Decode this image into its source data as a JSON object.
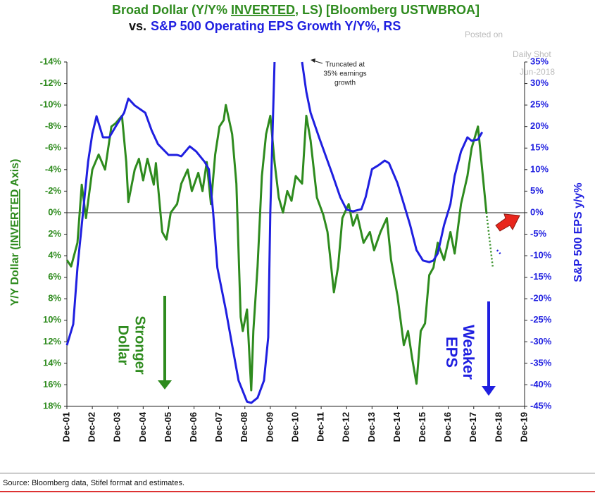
{
  "chart_data": {
    "type": "line",
    "title": {
      "line1": [
        "Broad Dollar (Y/Y% ",
        "INVERTED",
        ", LS) [Bloomberg USTWBROA]"
      ],
      "line2_prefix": "vs.",
      "line2": "S&P 500 Operating EPS  Growth Y/Y%, RS"
    },
    "watermark": [
      "Posted on",
      "Daily Shot",
      "Jun-2018"
    ],
    "ylabel": [
      "Y/Y Dollar (",
      "INVERTED",
      " Axis)"
    ],
    "y2label": "S&P 500 EPS y/y%",
    "annotations": {
      "truncated": [
        "Truncated at",
        "35% earnings",
        "growth"
      ],
      "stronger": [
        "Stronger",
        "Dollar"
      ],
      "weaker": [
        "Weaker",
        "EPS"
      ]
    },
    "source": "Source: Bloomberg data, Stifel format and estimates.",
    "xlim": [
      "2001-12",
      "2019-12"
    ],
    "xticks": [
      {
        "value": "2001-12",
        "label": "Dec-01"
      },
      {
        "value": "2002-12",
        "label": "Dec-02"
      },
      {
        "value": "2003-12",
        "label": "Dec-03"
      },
      {
        "value": "2004-12",
        "label": "Dec-04"
      },
      {
        "value": "2005-12",
        "label": "Dec-05"
      },
      {
        "value": "2006-12",
        "label": "Dec-06"
      },
      {
        "value": "2007-12",
        "label": "Dec-07"
      },
      {
        "value": "2008-12",
        "label": "Dec-08"
      },
      {
        "value": "2009-12",
        "label": "Dec-09"
      },
      {
        "value": "2010-12",
        "label": "Dec-10"
      },
      {
        "value": "2011-12",
        "label": "Dec-11"
      },
      {
        "value": "2012-12",
        "label": "Dec-12"
      },
      {
        "value": "2013-12",
        "label": "Dec-13"
      },
      {
        "value": "2014-12",
        "label": "Dec-14"
      },
      {
        "value": "2015-12",
        "label": "Dec-15"
      },
      {
        "value": "2016-12",
        "label": "Dec-16"
      },
      {
        "value": "2017-12",
        "label": "Dec-17"
      },
      {
        "value": "2018-12",
        "label": "Dec-18"
      },
      {
        "value": "2019-12",
        "label": "Dec-19"
      }
    ],
    "ylim": [
      -14,
      18
    ],
    "yinvert": true,
    "yticks": [
      {
        "value": -14,
        "label": "-14%"
      },
      {
        "value": -12,
        "label": "-12%"
      },
      {
        "value": -10,
        "label": "-10%"
      },
      {
        "value": -8,
        "label": "-8%"
      },
      {
        "value": -6,
        "label": "-6%"
      },
      {
        "value": -4,
        "label": "-4%"
      },
      {
        "value": -2,
        "label": "-2%"
      },
      {
        "value": 0,
        "label": "0%"
      },
      {
        "value": 2,
        "label": "2%"
      },
      {
        "value": 4,
        "label": "4%"
      },
      {
        "value": 6,
        "label": "6%"
      },
      {
        "value": 8,
        "label": "8%"
      },
      {
        "value": 10,
        "label": "10%"
      },
      {
        "value": 12,
        "label": "12%"
      },
      {
        "value": 14,
        "label": "14%"
      },
      {
        "value": 16,
        "label": "16%"
      },
      {
        "value": 18,
        "label": "18%"
      }
    ],
    "y2lim": [
      -45,
      35
    ],
    "y2ticks": [
      {
        "value": 35,
        "label": "35%"
      },
      {
        "value": 30,
        "label": "30%"
      },
      {
        "value": 25,
        "label": "25%"
      },
      {
        "value": 20,
        "label": "20%"
      },
      {
        "value": 15,
        "label": "15%"
      },
      {
        "value": 10,
        "label": "10%"
      },
      {
        "value": 5,
        "label": "5%"
      },
      {
        "value": 0,
        "label": "0%"
      },
      {
        "value": -5,
        "label": "-5%"
      },
      {
        "value": -10,
        "label": "-10%"
      },
      {
        "value": -15,
        "label": "-15%"
      },
      {
        "value": -20,
        "label": "-20%"
      },
      {
        "value": -25,
        "label": "-25%"
      },
      {
        "value": -30,
        "label": "-30%"
      },
      {
        "value": -35,
        "label": "-35%"
      },
      {
        "value": -40,
        "label": "-40%"
      },
      {
        "value": -45,
        "label": "-45%"
      }
    ],
    "series": [
      {
        "color": "#2e8b1e",
        "axis": "y",
        "dotted": false,
        "x": [
          "2001-12",
          "2002-02",
          "2002-05",
          "2002-07",
          "2002-09",
          "2002-12",
          "2003-03",
          "2003-06",
          "2003-09",
          "2003-11",
          "2004-02",
          "2004-04",
          "2004-05",
          "2004-08",
          "2004-10",
          "2004-12",
          "2005-02",
          "2005-05",
          "2005-06",
          "2005-09",
          "2005-11",
          "2006-01",
          "2006-04",
          "2006-06",
          "2006-09",
          "2006-11",
          "2007-02",
          "2007-04",
          "2007-06",
          "2007-08",
          "2007-10",
          "2007-12",
          "2008-02",
          "2008-03",
          "2008-06",
          "2008-08",
          "2008-10",
          "2008-11",
          "2009-01",
          "2009-03",
          "2009-04",
          "2009-06",
          "2009-08",
          "2009-10",
          "2009-12",
          "2010-02",
          "2010-04",
          "2010-06",
          "2010-08",
          "2010-10",
          "2010-12",
          "2011-03",
          "2011-05",
          "2011-07",
          "2011-10",
          "2012-01",
          "2012-03",
          "2012-06",
          "2012-08",
          "2012-10",
          "2013-01",
          "2013-03",
          "2013-05",
          "2013-08",
          "2013-11",
          "2014-01",
          "2014-04",
          "2014-07",
          "2014-09",
          "2014-12",
          "2015-03",
          "2015-05",
          "2015-07",
          "2015-09",
          "2015-11",
          "2016-01",
          "2016-03",
          "2016-05",
          "2016-07",
          "2016-10",
          "2017-01",
          "2017-03",
          "2017-06",
          "2017-09",
          "2017-11",
          "2018-02",
          "2018-04",
          "2018-06"
        ],
        "values": [
          4.4,
          5,
          2.8,
          -2.6,
          0.5,
          -4,
          -5.4,
          -4,
          -8,
          -8.3,
          -9,
          -4.7,
          -1,
          -4,
          -5,
          -3,
          -5,
          -2.6,
          -4.6,
          1.8,
          2.5,
          0,
          -0.8,
          -2.7,
          -4,
          -2,
          -3.7,
          -2,
          -4.7,
          -0.8,
          -5.4,
          -8,
          -8.6,
          -10,
          -7.3,
          -2.7,
          9.7,
          11,
          9,
          16.5,
          11,
          5,
          -3.4,
          -7.3,
          -9,
          -4.7,
          -1.4,
          0,
          -2,
          -1.1,
          -3.4,
          -2.7,
          -9,
          -6.7,
          -1.4,
          0.2,
          1.8,
          7.4,
          5,
          0.5,
          -0.8,
          1.2,
          0.2,
          2.8,
          1.8,
          3.5,
          1.8,
          0.5,
          4.4,
          7.7,
          12.3,
          11,
          13.6,
          15.9,
          11,
          10.3,
          5.8,
          5.1,
          2.8,
          4.4,
          1.8,
          3.8,
          -0.8,
          -3.4,
          -6,
          -8,
          -4,
          0
        ]
      },
      {
        "color": "#2e8b1e",
        "axis": "y",
        "dotted": true,
        "x": [
          "2018-06",
          "2018-09"
        ],
        "values": [
          0,
          5.1
        ]
      },
      {
        "color": "#1f1fe0",
        "axis": "y2",
        "dotted": false,
        "x": [
          "2001-12",
          "2002-03",
          "2002-05",
          "2002-08",
          "2002-10",
          "2002-12",
          "2003-02",
          "2003-05",
          "2003-08",
          "2003-11",
          "2004-03",
          "2004-05",
          "2004-08",
          "2005-01",
          "2005-04",
          "2005-07",
          "2005-12",
          "2006-04",
          "2006-06",
          "2006-10",
          "2007-01",
          "2007-05",
          "2007-07",
          "2007-09",
          "2007-11",
          "2008-03",
          "2008-06",
          "2008-09",
          "2009-01",
          "2009-03",
          "2009-06",
          "2009-09",
          "2009-11",
          "2009-12",
          "2010-02",
          "2010-08",
          "2011-03",
          "2011-05",
          "2011-07",
          "2011-11",
          "2012-02",
          "2012-05",
          "2012-09",
          "2012-12",
          "2013-03",
          "2013-07",
          "2013-09",
          "2013-12",
          "2014-03",
          "2014-06",
          "2014-08",
          "2014-12",
          "2015-03",
          "2015-06",
          "2015-09",
          "2015-12",
          "2016-03",
          "2016-05",
          "2016-07",
          "2016-10",
          "2017-01",
          "2017-03",
          "2017-06",
          "2017-09",
          "2017-11",
          "2018-02",
          "2018-04"
        ],
        "values": [
          -30.8,
          -25.9,
          -12.8,
          2,
          11.8,
          18.3,
          22.4,
          17.5,
          17.5,
          20,
          23.2,
          26.5,
          24.9,
          23.2,
          19.1,
          15.9,
          13.4,
          13.4,
          13.1,
          15.4,
          14.2,
          11.8,
          10.1,
          0.3,
          -12.8,
          -22.6,
          -30.8,
          -39,
          -43.9,
          -44.2,
          -43,
          -39,
          -29,
          0.3,
          35,
          null,
          35,
          28.1,
          23.2,
          17.5,
          13.4,
          9.3,
          3.6,
          0.7,
          0.3,
          0.8,
          3.6,
          10.1,
          11,
          12.1,
          11.5,
          6.9,
          2,
          -2.9,
          -8.7,
          -11.1,
          -11.5,
          -11.1,
          -9.5,
          -2.9,
          2,
          8.5,
          14.2,
          17.5,
          16.7,
          17,
          18.7
        ]
      },
      {
        "color": "#1f1fe0",
        "axis": "y2",
        "dotted": true,
        "x": [
          "2018-11",
          "2019-01"
        ],
        "values": [
          -8.7,
          -9.8
        ]
      }
    ]
  }
}
